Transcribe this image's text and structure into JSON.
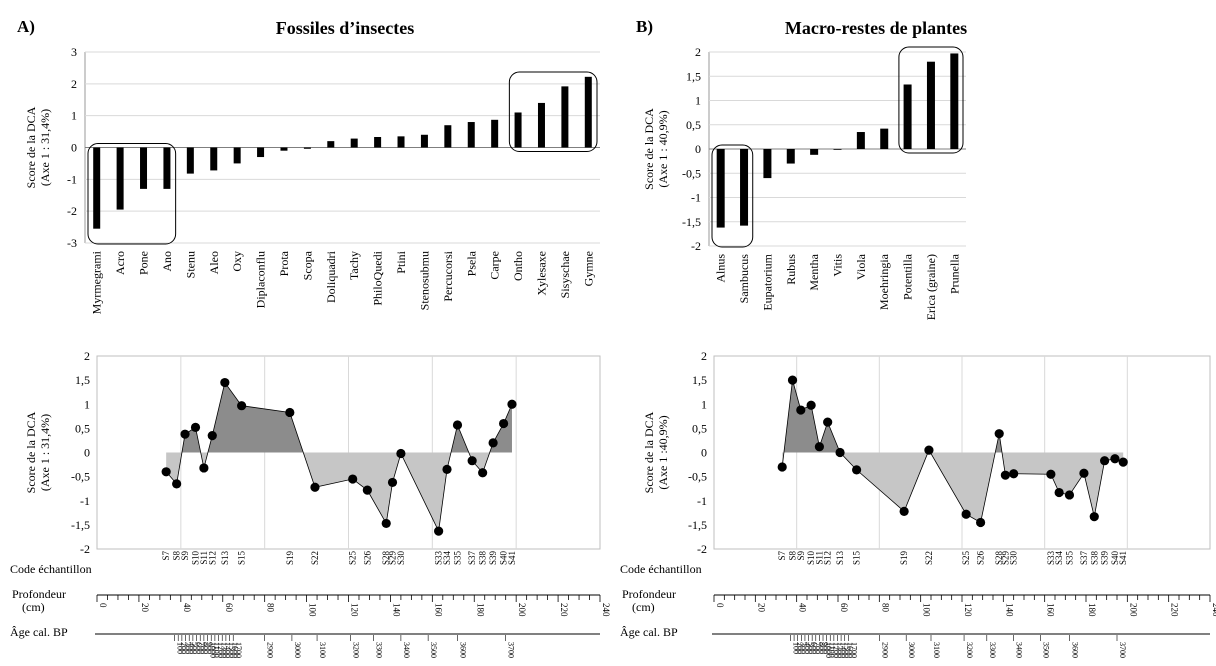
{
  "figure": {
    "rowlabels": {
      "code": "Code échantillon",
      "depth": "Profondeur\n(cm)",
      "age": "Âge cal. BP"
    },
    "depth_ticks": [
      0,
      20,
      40,
      60,
      80,
      100,
      120,
      140,
      160,
      180,
      200,
      220,
      240
    ],
    "age_ticks": [
      "100",
      "200",
      "300",
      "400",
      "500",
      "600",
      "700",
      "800",
      "900",
      "1000",
      "1100",
      "1200",
      "1300",
      "1400",
      "1500",
      "1600",
      "1700",
      "2900",
      "3000",
      "3100",
      "3200",
      "3300",
      "3400",
      "3500",
      "3600",
      "3700"
    ]
  },
  "chart_data": [
    {
      "panel": "A)",
      "type": "bar",
      "title": "Fossiles d’insectes",
      "ylabel": "Score de la DCA\n(Axe 1 : 31,4%)",
      "ylim": [
        -3,
        3
      ],
      "yticks": [
        "-3",
        "-2",
        "-1",
        "0",
        "1",
        "2",
        "3"
      ],
      "categories": [
        "Myrmegrami",
        "Acro",
        "Pone",
        "Ano",
        "Stenu",
        "Aleo",
        "Oxy",
        "Diplaconflu",
        "Prota",
        "Scopa",
        "Doliquadri",
        "Tachy",
        "PhiloQuedi",
        "Ptini",
        "Stenosubmu",
        "Percucorsi",
        "Psela",
        "Carpe",
        "Ontho",
        "Xylesaxe",
        "Sisyschae",
        "Gymne"
      ],
      "values": [
        -2.55,
        -1.95,
        -1.3,
        -1.3,
        -0.82,
        -0.72,
        -0.5,
        -0.3,
        -0.1,
        -0.04,
        0.2,
        0.28,
        0.33,
        0.35,
        0.4,
        0.7,
        0.8,
        0.87,
        1.1,
        1.4,
        1.92,
        2.22
      ],
      "groups": [
        [
          0,
          3
        ],
        [
          18,
          21
        ]
      ]
    },
    {
      "panel": "B)",
      "type": "bar",
      "title": "Macro-restes de plantes",
      "ylabel": "Score de la DCA\n(Axe 1 : 40,9%)",
      "ylim": [
        -2,
        2
      ],
      "yticks": [
        "-2",
        "-1,5",
        "-1",
        "-0,5",
        "0",
        "0,5",
        "1",
        "1,5",
        "2"
      ],
      "categories": [
        "Alnus",
        "Sambucus",
        "Eupatorium",
        "Rubus",
        "Mentha",
        "Vitis",
        "Viola",
        "Moehringia",
        "Potentilla",
        "Erica (graine)",
        "Prunella"
      ],
      "values": [
        -1.62,
        -1.58,
        -0.6,
        -0.3,
        -0.12,
        -0.01,
        0.35,
        0.42,
        1.33,
        1.8,
        1.97
      ],
      "groups": [
        [
          0,
          1
        ],
        [
          8,
          10
        ]
      ]
    },
    {
      "panel": "A-bottom",
      "type": "area",
      "ylabel": "Score de la DCA\n(Axe 1 : 31,4%)",
      "ylim": [
        -2,
        2
      ],
      "yticks": [
        "-2",
        "-1,5",
        "-1",
        "-0,5",
        "0",
        "0,5",
        "1",
        "1,5",
        "2"
      ],
      "x": [
        33,
        38,
        42,
        47,
        51,
        55,
        61,
        69,
        92,
        104,
        122,
        129,
        138,
        141,
        145,
        163,
        167,
        172,
        179,
        184,
        189,
        194,
        198
      ],
      "values": [
        -0.4,
        -0.65,
        0.38,
        0.52,
        -0.32,
        0.35,
        1.45,
        0.97,
        0.83,
        -0.72,
        -0.55,
        -0.78,
        -1.47,
        -0.62,
        -0.02,
        -1.63,
        -0.35,
        0.57,
        -0.17,
        -0.42,
        0.2,
        0.6,
        1.0
      ],
      "codes": [
        "S7",
        "S8",
        "S9",
        "S10",
        "S11",
        "S12",
        "S13",
        "S15",
        "S19",
        "S22",
        "S25",
        "S26",
        "S28",
        "S29",
        "S30",
        "S33",
        "S34",
        "S35",
        "S37",
        "S38",
        "S39",
        "S40",
        "S41"
      ]
    },
    {
      "panel": "B-bottom",
      "type": "area",
      "ylabel": "Score de la DCA\n(Axe 1 :40,9%)",
      "ylim": [
        -2,
        2
      ],
      "yticks": [
        "-2",
        "-1,5",
        "-1",
        "-0,5",
        "0",
        "0,5",
        "1",
        "1,5",
        "2"
      ],
      "x": [
        33,
        38,
        42,
        47,
        51,
        55,
        61,
        69,
        92,
        104,
        122,
        129,
        138,
        141,
        145,
        163,
        167,
        172,
        179,
        184,
        189,
        194,
        198
      ],
      "values": [
        -0.3,
        1.5,
        0.88,
        0.98,
        0.12,
        0.63,
        0.0,
        -0.36,
        -1.22,
        0.05,
        -1.28,
        -1.45,
        0.39,
        -0.47,
        -0.44,
        -0.45,
        -0.83,
        -0.88,
        -0.43,
        -1.33,
        -0.17,
        -0.13,
        -0.2
      ],
      "codes": [
        "S7",
        "S8",
        "S9",
        "S10",
        "S11",
        "S12",
        "S13",
        "S15",
        "S19",
        "S22",
        "S25",
        "S26",
        "S28",
        "S29",
        "S30",
        "S33",
        "S34",
        "S35",
        "S37",
        "S38",
        "S39",
        "S40",
        "S41"
      ]
    }
  ]
}
